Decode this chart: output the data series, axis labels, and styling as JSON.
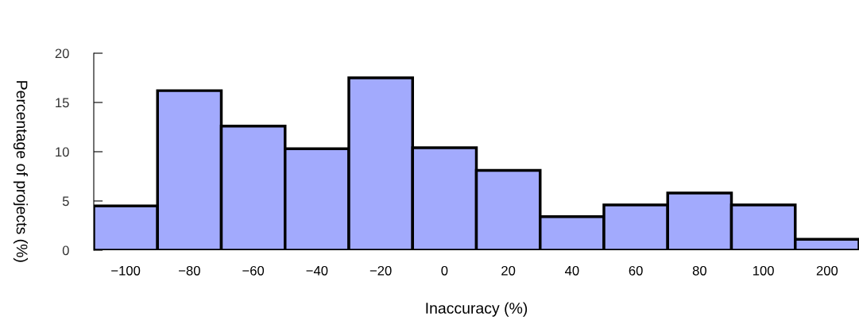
{
  "chart_data": {
    "type": "bar",
    "xlabel": "Inaccuracy (%)",
    "ylabel": "Percentage of projects (%)",
    "categories": [
      "−100",
      "−80",
      "−60",
      "−40",
      "−20",
      "0",
      "20",
      "40",
      "60",
      "80",
      "100",
      "200"
    ],
    "values": [
      4.5,
      16.2,
      12.6,
      10.3,
      17.5,
      10.4,
      8.1,
      3.4,
      4.6,
      5.8,
      4.6,
      1.1
    ],
    "color": "#a2aafd",
    "ylim": [
      0,
      20
    ],
    "yticks": [
      0,
      5,
      10,
      15,
      20
    ],
    "grid": false,
    "legend": false
  }
}
